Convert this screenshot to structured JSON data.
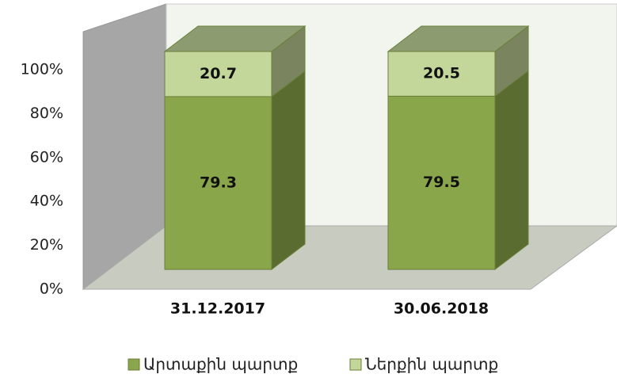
{
  "chart_data": {
    "type": "bar3d_stacked",
    "categories": [
      "31.12.2017",
      "30.06.2018"
    ],
    "series": [
      {
        "name": "Արտաքին պարտք",
        "color": "#8aa64a",
        "values": [
          79.3,
          79.5
        ]
      },
      {
        "name": "Ներքին պարտք",
        "color": "#c4d79b",
        "values": [
          20.7,
          20.5
        ]
      }
    ],
    "ylim": [
      0,
      100
    ],
    "yticks": [
      {
        "value": 0,
        "label": "0%"
      },
      {
        "value": 20,
        "label": "20%"
      },
      {
        "value": 40,
        "label": "40%"
      },
      {
        "value": 60,
        "label": "60%"
      },
      {
        "value": 80,
        "label": "80%"
      },
      {
        "value": 100,
        "label": "100%"
      }
    ]
  }
}
